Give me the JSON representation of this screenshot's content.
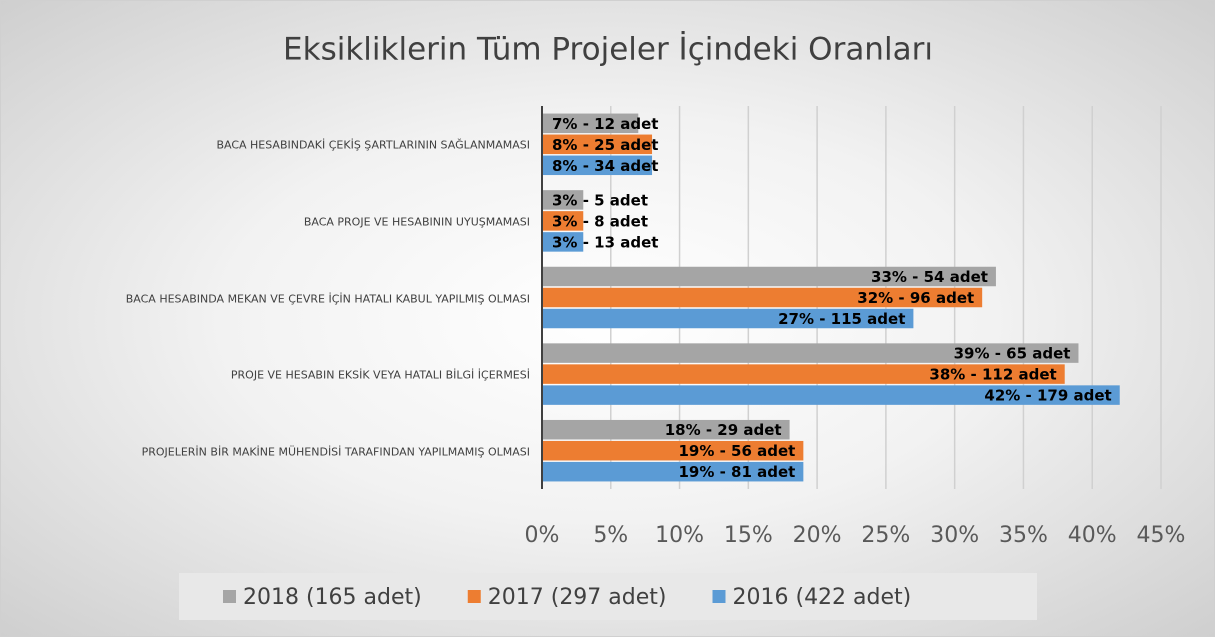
{
  "chart_data": {
    "type": "bar",
    "orientation": "horizontal",
    "title": "Eksikliklerin Tüm Projeler İçindeki Oranları",
    "categories": [
      "BACA HESABINDAKİ ÇEKİŞ ŞARTLARININ SAĞLANMAMASI",
      "BACA PROJE VE HESABININ UYUŞMAMASI",
      "BACA HESABINDA MEKAN VE ÇEVRE İÇİN HATALI KABUL YAPILMIŞ OLMASI",
      "PROJE VE HESABIN EKSİK VEYA HATALI BİLGİ İÇERMESİ",
      "PROJELERİN BİR MAKİNE  MÜHENDİSİ TARAFINDAN YAPILMAMIŞ OLMASI"
    ],
    "series": [
      {
        "name": "2018 (165 adet)",
        "color": "#a5a5a5",
        "values": [
          7,
          3,
          33,
          39,
          18
        ],
        "value_labels": [
          "7% - 12 adet",
          "3%  - 5 adet",
          "33% - 54 adet",
          "39% - 65 adet",
          "18% - 29 adet"
        ]
      },
      {
        "name": "2017 (297 adet)",
        "color": "#ed7d31",
        "values": [
          8,
          3,
          32,
          38,
          19
        ],
        "value_labels": [
          "8% - 25 adet",
          "3% - 8 adet",
          "32% - 96 adet",
          "38% - 112 adet",
          "19% - 56 adet"
        ]
      },
      {
        "name": "2016 (422 adet)",
        "color": "#5b9bd5",
        "values": [
          8,
          3,
          27,
          42,
          19
        ],
        "value_labels": [
          "8% - 34 adet",
          "3% - 13 adet",
          "27% - 115 adet",
          "42% - 179 adet",
          "19% - 81 adet"
        ]
      }
    ],
    "xlim": [
      0,
      45
    ],
    "xticks": [
      {
        "value": 0,
        "label": "0%"
      },
      {
        "value": 5,
        "label": "5%"
      },
      {
        "value": 10,
        "label": "10%"
      },
      {
        "value": 15,
        "label": "15%"
      },
      {
        "value": 20,
        "label": "20%"
      },
      {
        "value": 25,
        "label": "25%"
      },
      {
        "value": 30,
        "label": "30%"
      },
      {
        "value": 35,
        "label": "35%"
      },
      {
        "value": 40,
        "label": "40%"
      },
      {
        "value": 45,
        "label": "45%"
      }
    ],
    "grid": true,
    "legend": "bottom"
  }
}
